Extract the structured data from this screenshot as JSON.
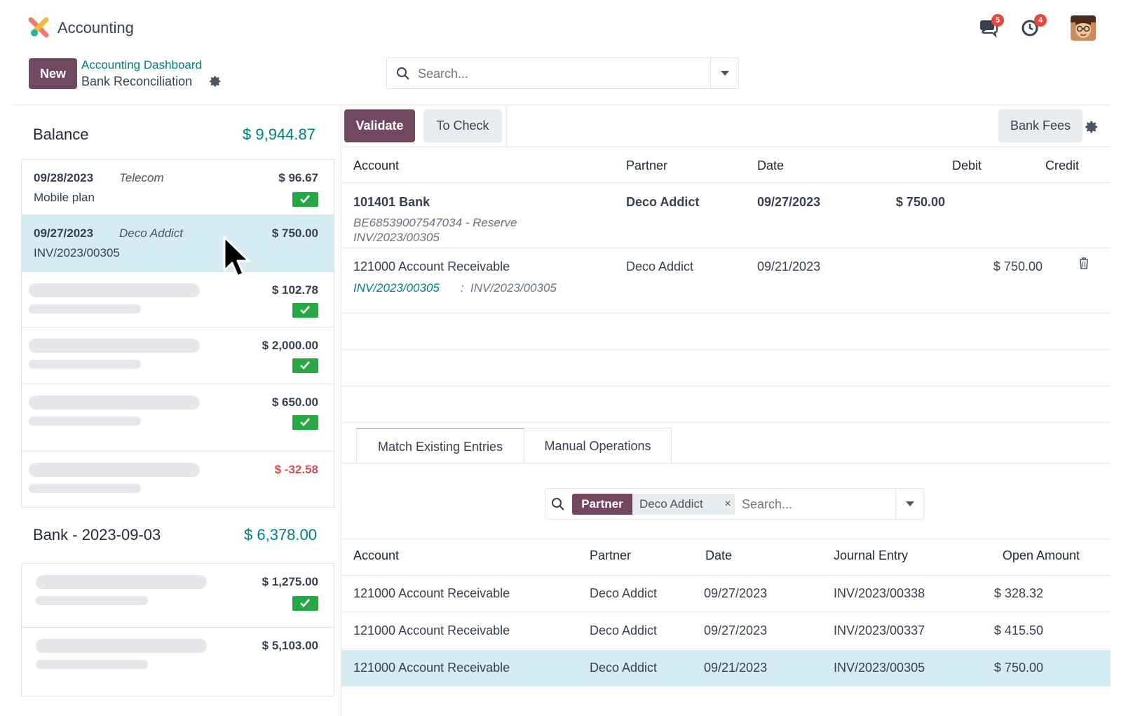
{
  "app": {
    "title": "Accounting",
    "logo_icon": "accounting-logo-icon"
  },
  "topbar": {
    "messages_badge": "5",
    "activities_badge": "4"
  },
  "control": {
    "new_label": "New",
    "breadcrumb_parent": "Accounting Dashboard",
    "breadcrumb_current": "Bank Reconciliation",
    "search_placeholder": "Search..."
  },
  "left": {
    "balance_label": "Balance",
    "balance_amount": "$ 9,944.87",
    "statements": [
      {
        "date": "09/28/2023",
        "partner": "Telecom",
        "label": "Mobile plan",
        "amount": "$ 96.67",
        "checked": true
      },
      {
        "date": "09/27/2023",
        "partner": "Deco Addict",
        "label": "INV/2023/00305",
        "amount": "$ 750.00",
        "checked": false,
        "selected": true
      },
      {
        "amount": "$ 102.78",
        "checked": true
      },
      {
        "amount": "$ 2,000.00",
        "checked": true
      },
      {
        "amount": "$ 650.00",
        "checked": true
      },
      {
        "amount": "$ -32.58",
        "checked": false,
        "negative": true
      }
    ],
    "bank_label": "Bank - 2023-09-03",
    "bank_amount": "$ 6,378.00",
    "bank_statements": [
      {
        "amount": "$ 1,275.00",
        "checked": true
      },
      {
        "amount": "$ 5,103.00",
        "checked": false
      }
    ]
  },
  "toolbar": {
    "validate_label": "Validate",
    "to_check_label": "To Check",
    "bank_fees_label": "Bank Fees"
  },
  "lines": {
    "headers": {
      "account": "Account",
      "partner": "Partner",
      "date": "Date",
      "debit": "Debit",
      "credit": "Credit"
    },
    "rows": [
      {
        "account": "101401 Bank",
        "partner": "Deco Addict",
        "date": "09/27/2023",
        "debit": "$ 750.00",
        "credit": "",
        "ref1": "BE68539007547034 - Reserve",
        "ref2": "INV/2023/00305"
      },
      {
        "account": "121000 Account Receivable",
        "partner": "Deco Addict",
        "date": "09/21/2023",
        "debit": "",
        "credit": "$ 750.00",
        "link": "INV/2023/00305",
        "sep": ":",
        "ref": "INV/2023/00305"
      }
    ]
  },
  "tabs": {
    "match": "Match Existing Entries",
    "manual": "Manual Operations"
  },
  "filter": {
    "facet_label": "Partner",
    "facet_value": "Deco Addict",
    "facet_remove": "×",
    "placeholder": "Search..."
  },
  "matches": {
    "headers": {
      "account": "Account",
      "partner": "Partner",
      "date": "Date",
      "journal_entry": "Journal Entry",
      "open_amount": "Open Amount"
    },
    "rows": [
      {
        "account": "121000 Account Receivable",
        "partner": "Deco Addict",
        "date": "09/27/2023",
        "journal_entry": "INV/2023/00338",
        "open_amount": "$ 328.32"
      },
      {
        "account": "121000 Account Receivable",
        "partner": "Deco Addict",
        "date": "09/27/2023",
        "journal_entry": "INV/2023/00337",
        "open_amount": "$ 415.50"
      },
      {
        "account": "121000 Account Receivable",
        "partner": "Deco Addict",
        "date": "09/21/2023",
        "journal_entry": "INV/2023/00305",
        "open_amount": "$ 750.00",
        "selected": true
      }
    ]
  },
  "colors": {
    "primary": "#71485f",
    "accent": "#017e84",
    "success": "#28a745",
    "danger": "#d44c59",
    "selected_row": "#d6ecf3"
  }
}
